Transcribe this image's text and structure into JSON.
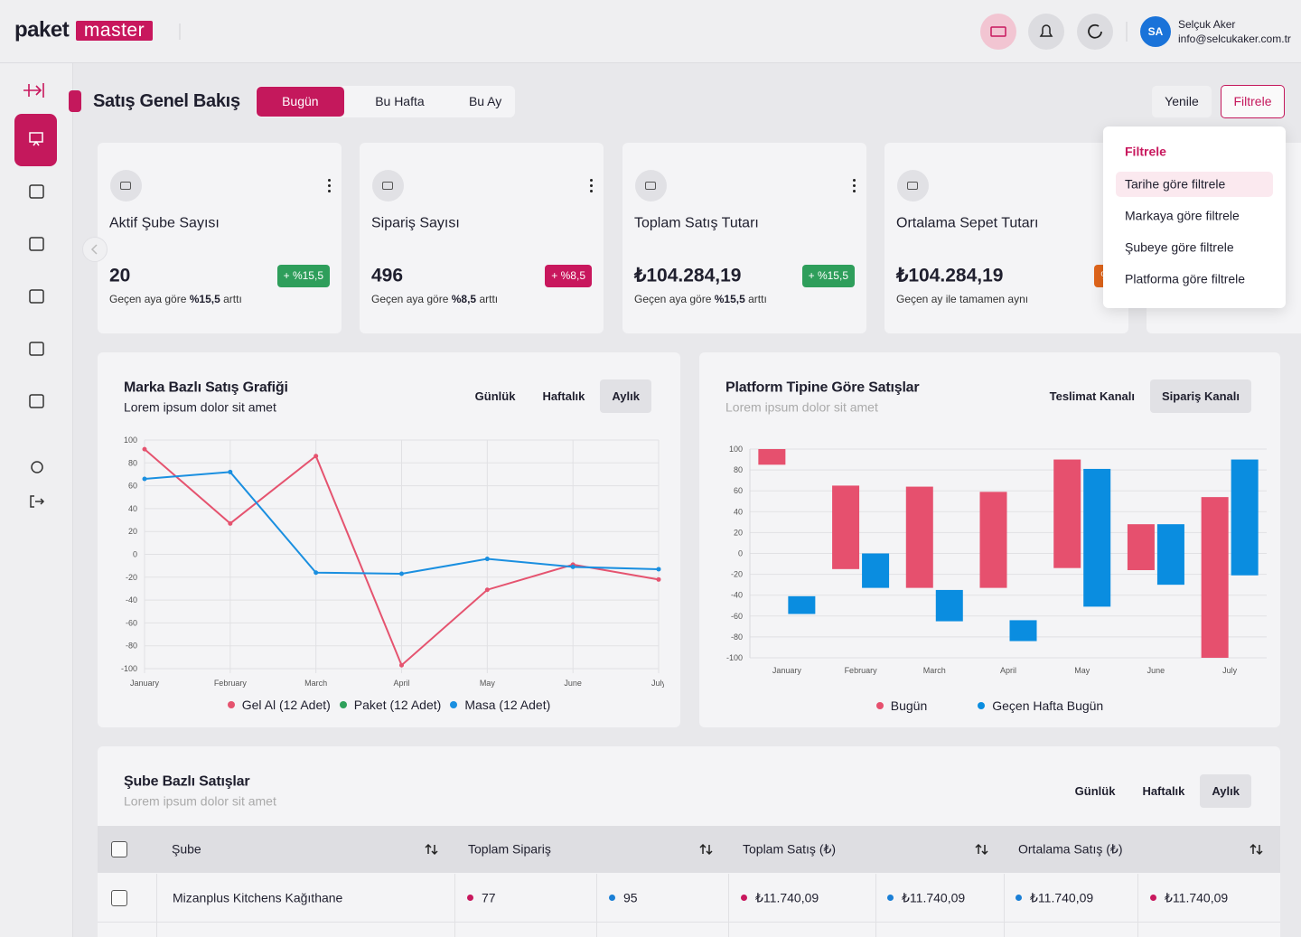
{
  "header": {
    "logo": [
      "paket",
      "master"
    ],
    "user": {
      "initials": "SA",
      "name": "Selçuk Aker",
      "email": "info@selcukaker.com.tr"
    }
  },
  "page": {
    "title": "Satış Genel Bakış",
    "tabs": [
      "Bugün",
      "Bu Hafta",
      "Bu Ay"
    ],
    "active_tab": 0,
    "buttons": [
      "Yenile",
      "Filtrele"
    ]
  },
  "filter_menu": {
    "title": "Filtrele",
    "items": [
      "Tarihe göre filtrele",
      "Markaya göre filtrele",
      "Şubeye göre filtrele",
      "Platforma göre filtrele"
    ],
    "active_item": 0
  },
  "cards": [
    {
      "title": "Aktif Şube Sayısı",
      "value": 20,
      "badge": "+ %15,5",
      "badge_color": "#2e9e5b",
      "note": [
        {
          "text": "Geçen aya göre"
        },
        {
          "text": "%15,5",
          "bold": true
        },
        {
          "text": "arttı"
        }
      ]
    },
    {
      "title": "Sipariş Sayısı",
      "value": 496,
      "badge": "+ %8,5",
      "badge_color": "#c8175d",
      "note": [
        {
          "text": "Geçen aya göre"
        },
        {
          "text": "%8,5",
          "bold": true
        },
        {
          "text": "arttı"
        }
      ]
    },
    {
      "title": "Toplam Satış Tutarı",
      "value": "₺104.284,19",
      "badge": "+ %15,5",
      "badge_color": "#2e9e5b",
      "note": [
        {
          "text": "Geçen aya göre"
        },
        {
          "text": "%15,5",
          "bold": true
        },
        {
          "text": "arttı"
        }
      ]
    },
    {
      "title": "Ortalama Sepet Tutarı",
      "value": "₺104.284,19",
      "badge": "%",
      "badge_color": "#e0651b",
      "note": [
        {
          "text": "Geçen ay ile tamamen aynı"
        }
      ]
    }
  ],
  "chart_data": [
    {
      "type": "line",
      "title": "Marka Bazlı Satış Grafiği",
      "subtitle": "Lorem ipsum dolor sit amet",
      "tabs": [
        "Günlük",
        "Haftalık",
        "Aylık"
      ],
      "active_tab": 2,
      "categories": [
        "January",
        "February",
        "March",
        "April",
        "May",
        "June",
        "July"
      ],
      "series": [
        {
          "name": "Gel Al (12 Adet)",
          "color": "#e5536f",
          "values": [
            92,
            27,
            86,
            -97,
            -31,
            -9,
            -22
          ]
        },
        {
          "name": "Paket (12 Adet)",
          "color": "#2ea05a",
          "values": [
            null,
            null,
            null,
            null,
            null,
            null,
            null
          ]
        },
        {
          "name": "Masa (12 Adet)",
          "color": "#1a8fe0",
          "values": [
            66,
            72,
            -16,
            -17,
            -4,
            -11,
            -13
          ]
        }
      ],
      "ylim": [
        -100,
        100
      ],
      "yticks": [
        -100,
        -80,
        -60,
        -40,
        -20,
        0,
        20,
        40,
        60,
        80,
        100
      ],
      "grid": true
    },
    {
      "type": "floating_bar",
      "title": "Platform Tipine Göre Satışlar",
      "subtitle": "Lorem ipsum dolor sit amet",
      "tabs": [
        "Teslimat Kanalı",
        "Sipariş Kanalı"
      ],
      "active_tab": 1,
      "categories": [
        "January",
        "February",
        "March",
        "April",
        "May",
        "June",
        "July"
      ],
      "series": [
        {
          "name": "Bugün",
          "color": "#e6506e",
          "values": [
            [
              85,
              100
            ],
            [
              -15,
              65
            ],
            [
              -33,
              64
            ],
            [
              -33,
              59
            ],
            [
              -14,
              90
            ],
            [
              -16,
              28
            ],
            [
              -100,
              54
            ]
          ]
        },
        {
          "name": "Geçen Hafta Bugün",
          "color": "#0a8de0",
          "values": [
            [
              -58,
              -41
            ],
            [
              -33,
              0
            ],
            [
              -65,
              -35
            ],
            [
              -84,
              -64
            ],
            [
              -51,
              81
            ],
            [
              -30,
              28
            ],
            [
              -21,
              90
            ]
          ]
        }
      ],
      "ylim": [
        -100,
        100
      ],
      "yticks": [
        -100,
        -80,
        -60,
        -40,
        -20,
        0,
        20,
        40,
        60,
        80,
        100
      ],
      "grid": true
    }
  ],
  "table": {
    "title": "Şube Bazlı Satışlar",
    "subtitle": "Lorem ipsum dolor sit amet",
    "tabs": [
      "Günlük",
      "Haftalık",
      "Aylık"
    ],
    "active_tab": 2,
    "columns": [
      "Şube",
      "Toplam Sipariş",
      "Toplam Satış (₺)",
      "Ortalama Satış (₺)"
    ],
    "rows": [
      {
        "name": "Mizanplus Kitchens Kağıthane",
        "cells": [
          {
            "text": 77,
            "color": "#c8175d"
          },
          {
            "text": 95,
            "color": "#1a7fd6"
          },
          {
            "text": "₺11.740,09",
            "color": "#c8175d"
          },
          {
            "text": "₺11.740,09",
            "color": "#1a7fd6"
          },
          {
            "text": "₺11.740,09",
            "color": "#1a7fd6"
          },
          {
            "text": "₺11.740,09",
            "color": "#c8175d"
          }
        ]
      }
    ]
  }
}
